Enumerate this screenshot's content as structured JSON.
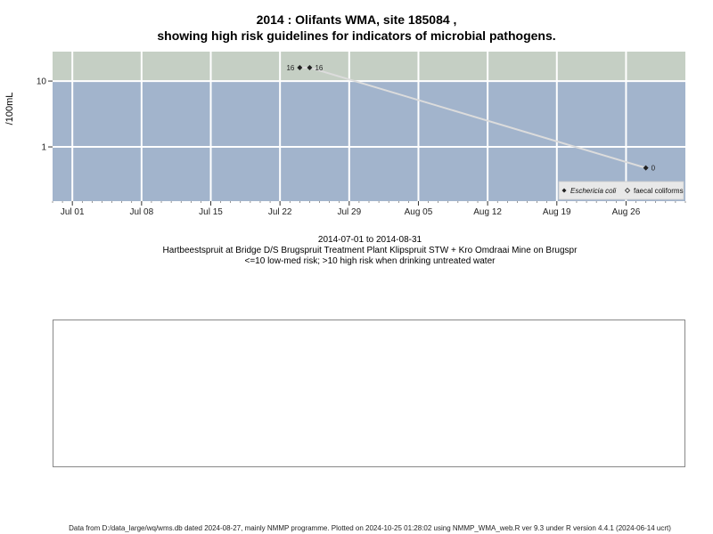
{
  "header": {
    "title_line1": "2014 : Olifants WMA, site 185084 ,",
    "title_line2": "showing high risk guidelines for indicators of microbial pathogens."
  },
  "subtitle": {
    "date_range": "2014-07-01 to 2014-08-31",
    "site_description": "Hartbeestspruit at Bridge D/S Brugspruit Treatment Plant Klipspruit STW + Kro Omdraai Mine on Brugspr",
    "risk_note": "<=10 low-med risk; >10 high risk when drinking untreated water"
  },
  "footer": {
    "text": "Data from D:/data_large/wq/wms.db dated 2024-08-27, mainly NMMP programme. Plotted on 2024-10-25 01:28:02 using NMMP_WMA_web.R ver 9.3 under R version 4.4.1 (2024-06-14 ucrt)"
  },
  "chart_data": {
    "type": "line",
    "ylabel": "/100mL",
    "y_scale": "log",
    "ylim": [
      0.15,
      28
    ],
    "xlim": [
      "2014-06-29",
      "2014-09-01"
    ],
    "x_ticks": [
      {
        "date": "2014-07-01",
        "label": "Jul 01"
      },
      {
        "date": "2014-07-08",
        "label": "Jul 08"
      },
      {
        "date": "2014-07-15",
        "label": "Jul 15"
      },
      {
        "date": "2014-07-22",
        "label": "Jul 22"
      },
      {
        "date": "2014-07-29",
        "label": "Jul 29"
      },
      {
        "date": "2014-08-05",
        "label": "Aug 05"
      },
      {
        "date": "2014-08-12",
        "label": "Aug 12"
      },
      {
        "date": "2014-08-19",
        "label": "Aug 19"
      },
      {
        "date": "2014-08-26",
        "label": "Aug 26"
      }
    ],
    "y_ticks": [
      {
        "value": 1,
        "label": "1"
      },
      {
        "value": 10,
        "label": "10"
      }
    ],
    "risk_threshold": 10,
    "colors": {
      "high_risk_band": "#c5cfc4",
      "low_risk_band": "#a2b4cc",
      "grid": "#ffffff",
      "series_line": "#dcdcdc",
      "marker": "#222222"
    },
    "legend": {
      "placement": "bottom-right",
      "entries": [
        "Eschericia coli",
        "faecal coliforms"
      ]
    },
    "series": [
      {
        "name": "Eschericia coli",
        "points": [
          {
            "x": "2014-07-24",
            "y": 16,
            "label": "16",
            "label_side": "left"
          },
          {
            "x": "2014-07-25",
            "y": 16,
            "label": "16",
            "label_side": "right"
          },
          {
            "x": "2014-08-28",
            "y": 0.48,
            "label": "0",
            "label_side": "right"
          }
        ]
      }
    ]
  }
}
